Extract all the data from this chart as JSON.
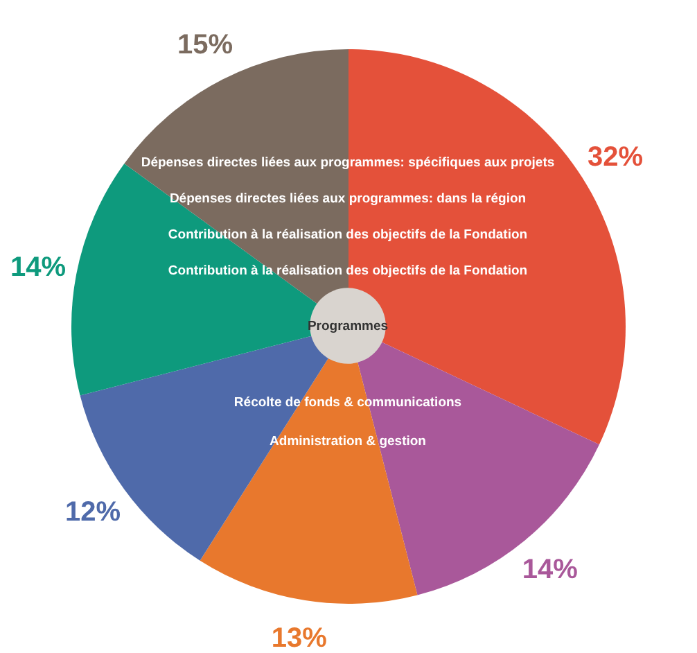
{
  "chart_data": {
    "type": "pie",
    "categories": [
      null,
      null,
      null,
      null,
      null,
      null
    ],
    "values": [
      32,
      14,
      13,
      12,
      14,
      15
    ],
    "colors": [
      "#e4513a",
      "#a9589a",
      "#e8782d",
      "#4f6aaa",
      "#0e9a7d",
      "#7b6b5f"
    ],
    "value_labels": [
      "32%",
      "14%",
      "13%",
      "12%",
      "14%",
      "15%"
    ],
    "annotations": [
      "Dépenses directes liées aux programmes: spécifiques aux projets",
      "Dépenses directes liées aux programmes: dans la région",
      "Contribution à la réalisation des objectifs de la Fondation",
      "Contribution à la réalisation des objectifs de la Fondation",
      "Programmes",
      "Récolte de fonds & communications",
      "Administration & gestion"
    ]
  }
}
